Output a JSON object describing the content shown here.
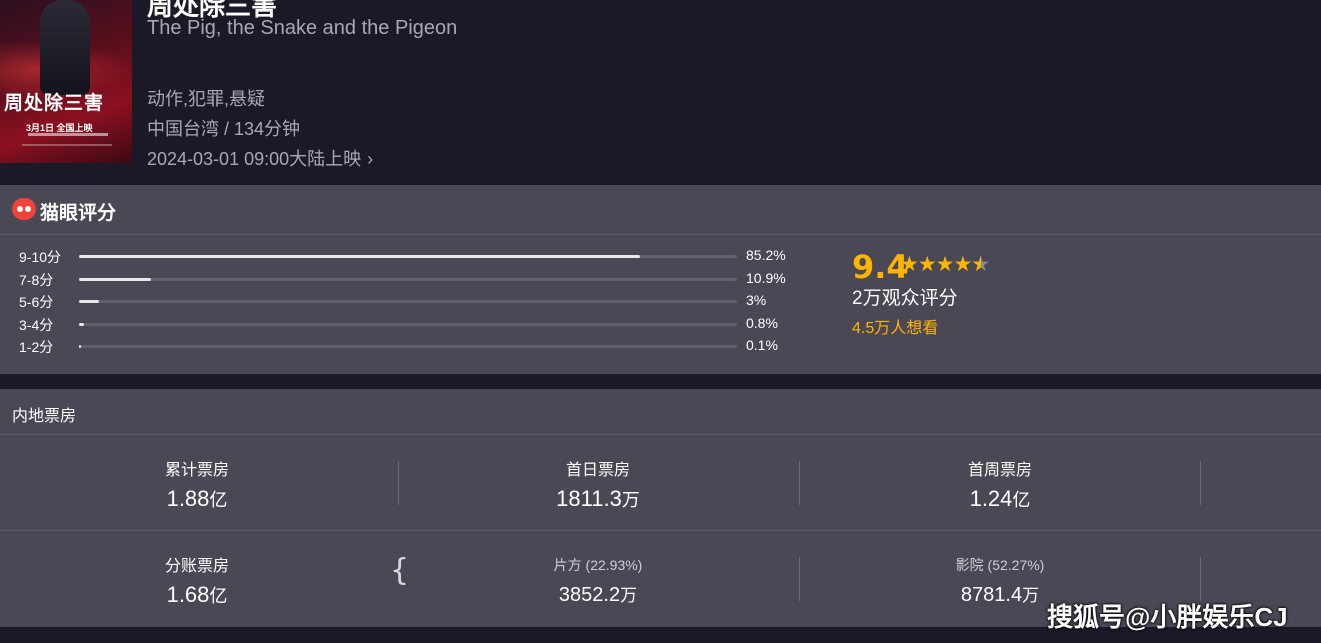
{
  "movie": {
    "title_cn": "周处除三害",
    "title_en": "The Pig, the Snake and the Pigeon",
    "genres": "动作,犯罪,悬疑",
    "region_duration": "中国台湾 / 134分钟",
    "release": "2024-03-01 09:00大陆上映",
    "release_chevron": "›",
    "poster": {
      "title_text": "周处除三害",
      "date_text": "3月1日 全国上映"
    }
  },
  "rating": {
    "section_title": "猫眼评分",
    "score": "9.4",
    "score_value": 9.4,
    "stars_full": 4,
    "stars_half": 1,
    "rating_count": "2万观众评分",
    "want_count": "4.5万人想看",
    "distribution": [
      {
        "label": "9-10分",
        "pct": "85.2%",
        "value": 85.2
      },
      {
        "label": "7-8分",
        "pct": "10.9%",
        "value": 10.9
      },
      {
        "label": "5-6分",
        "pct": "3%",
        "value": 3
      },
      {
        "label": "3-4分",
        "pct": "0.8%",
        "value": 0.8
      },
      {
        "label": "1-2分",
        "pct": "0.1%",
        "value": 0.1
      }
    ]
  },
  "boxoffice": {
    "section_title": "内地票房",
    "row1": [
      {
        "label": "累计票房",
        "value": "1.88",
        "unit": "亿"
      },
      {
        "label": "首日票房",
        "value": "1811.3",
        "unit": "万"
      },
      {
        "label": "首周票房",
        "value": "1.24",
        "unit": "亿"
      }
    ],
    "row2": [
      {
        "label": "分账票房",
        "value": "1.68",
        "unit": "亿"
      },
      {
        "label": "片方 (22.93%)",
        "value": "3852.2",
        "unit": "万"
      },
      {
        "label": "影院 (52.27%)",
        "value": "8781.4",
        "unit": "万"
      }
    ]
  },
  "watermark": "搜狐号@小胖娱乐CJ",
  "colors": {
    "accent": "#ffb400",
    "panel": "#4a4854",
    "background": "#1a1925",
    "brand_red": "#ef4238"
  }
}
